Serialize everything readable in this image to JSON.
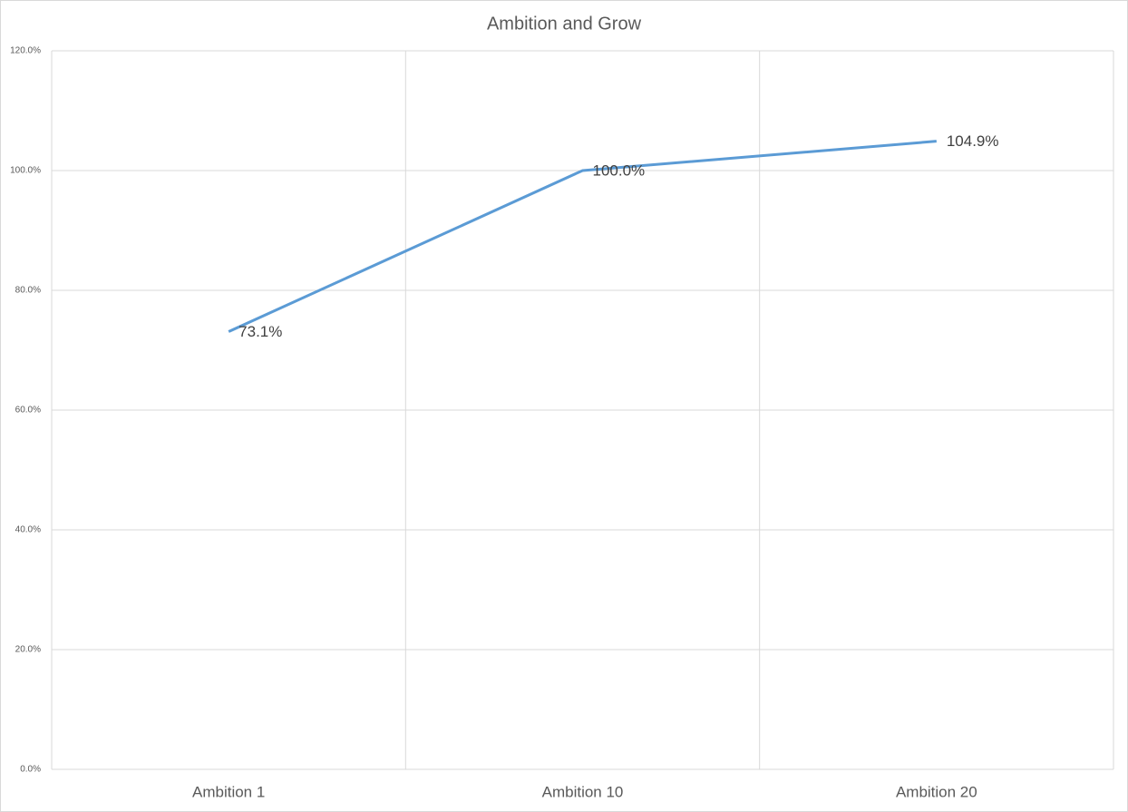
{
  "chart_data": {
    "type": "line",
    "title": "Ambition and Grow",
    "categories": [
      "Ambition 1",
      "Ambition 10",
      "Ambition 20"
    ],
    "series": [
      {
        "name": "Ambition and Grow",
        "color": "#5b9bd5",
        "values": [
          73.1,
          100.0,
          104.9
        ],
        "value_labels": [
          "73.1%",
          "100.0%",
          "104.9%"
        ]
      }
    ],
    "ylim": [
      0,
      120
    ],
    "yticks": [
      {
        "value": 0,
        "label": "0.0%"
      },
      {
        "value": 20,
        "label": "20.0%"
      },
      {
        "value": 40,
        "label": "40.0%"
      },
      {
        "value": 60,
        "label": "60.0%"
      },
      {
        "value": 80,
        "label": "80.0%"
      },
      {
        "value": 100,
        "label": "100.0%"
      },
      {
        "value": 120,
        "label": "120.0%"
      }
    ],
    "grid": true
  }
}
